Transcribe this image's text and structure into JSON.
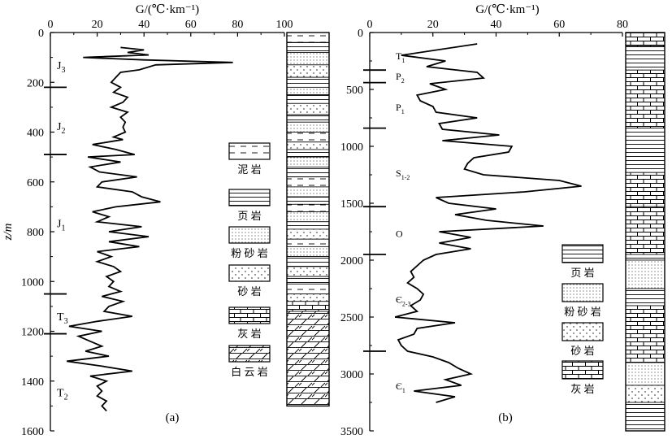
{
  "chart_data": [
    {
      "id": "a",
      "type": "line",
      "panel_label": "(a)",
      "xlabel": "G/(℃·km⁻¹)",
      "ylabel": "z/m",
      "xlim": [
        0,
        100
      ],
      "ylim": [
        1600,
        0
      ],
      "xticks": [
        0,
        20,
        40,
        60,
        80,
        100
      ],
      "yticks": [
        0,
        200,
        400,
        600,
        800,
        1000,
        1200,
        1400,
        1600
      ],
      "boundaries": [
        220,
        490,
        1050,
        1210
      ],
      "strata": [
        {
          "name": "J3",
          "base": "J",
          "sub": "3",
          "depth": 130
        },
        {
          "name": "J2",
          "base": "J",
          "sub": "2",
          "depth": 375
        },
        {
          "name": "J1",
          "base": "J",
          "sub": "1",
          "depth": 765
        },
        {
          "name": "T3",
          "base": "T",
          "sub": "3",
          "depth": 1140
        },
        {
          "name": "T2",
          "base": "T",
          "sub": "2",
          "depth": 1445
        }
      ],
      "series": [
        {
          "depth": [
            60,
            60,
            70,
            70,
            80,
            80,
            90,
            90,
            100,
            100,
            110,
            110,
            120,
            120,
            130,
            130,
            150,
            150,
            160,
            160,
            180,
            180,
            200,
            200,
            220,
            220,
            240,
            240,
            260,
            260,
            280,
            280,
            300,
            300,
            320,
            320,
            340,
            340,
            360,
            360,
            380,
            380,
            400,
            400,
            420,
            420,
            430,
            430,
            450,
            450,
            470,
            470,
            490,
            490,
            500,
            500,
            520,
            520,
            540,
            540,
            560,
            560,
            580,
            580,
            600,
            600,
            620,
            620,
            640,
            640,
            660,
            660,
            680,
            680,
            700,
            700,
            720,
            720,
            740,
            740,
            760,
            760,
            780,
            780,
            800,
            800,
            820,
            820,
            840,
            840,
            860,
            860,
            880,
            880,
            900,
            900,
            920,
            920,
            940,
            940,
            960,
            960,
            980,
            980,
            1000,
            1000,
            1020,
            1020,
            1040,
            1040,
            1060,
            1060,
            1080,
            1080,
            1100,
            1100,
            1120,
            1120,
            1140,
            1140,
            1160,
            1160,
            1180,
            1180,
            1200,
            1200,
            1220,
            1220,
            1240,
            1240,
            1260,
            1260,
            1280,
            1280,
            1300,
            1300,
            1320,
            1320,
            1340,
            1340,
            1360,
            1360,
            1380,
            1380,
            1400,
            1400,
            1420,
            1420,
            1440,
            1440,
            1460,
            1460,
            1480,
            1480,
            1500,
            1500,
            1520
          ],
          "G": [
            30,
            30,
            40,
            40,
            33,
            33,
            42,
            42,
            14,
            14,
            40,
            40,
            78,
            78,
            45,
            45,
            38,
            38,
            30,
            30,
            28,
            28,
            26,
            26,
            30,
            30,
            27,
            27,
            33,
            33,
            31,
            31,
            26,
            26,
            33,
            33,
            30,
            30,
            32,
            32,
            31,
            31,
            32,
            32,
            27,
            27,
            31,
            31,
            18,
            18,
            28,
            28,
            36,
            36,
            16,
            16,
            30,
            30,
            17,
            17,
            21,
            21,
            37,
            37,
            22,
            22,
            20,
            20,
            35,
            35,
            39,
            39,
            47,
            47,
            28,
            28,
            18,
            18,
            25,
            25,
            20,
            20,
            39,
            39,
            25,
            25,
            42,
            42,
            25,
            25,
            38,
            38,
            20,
            20,
            26,
            26,
            20,
            20,
            27,
            27,
            30,
            30,
            24,
            24,
            27,
            27,
            25,
            25,
            30,
            30,
            22,
            22,
            31,
            31,
            25,
            25,
            23,
            23,
            35,
            35,
            20,
            20,
            8,
            8,
            22,
            22,
            12,
            12,
            17,
            17,
            22,
            22,
            15,
            15,
            25,
            25,
            7,
            7,
            22,
            22,
            35,
            35,
            17,
            17,
            24,
            24,
            20,
            20,
            22,
            22,
            20,
            20,
            24,
            24,
            22,
            22,
            24
          ]
        }
      ],
      "lithology_column": [
        {
          "from": 0,
          "to": 40,
          "rock": "mudstone"
        },
        {
          "from": 40,
          "to": 80,
          "rock": "shale"
        },
        {
          "from": 80,
          "to": 130,
          "rock": "siltstone"
        },
        {
          "from": 130,
          "to": 180,
          "rock": "sandstone"
        },
        {
          "from": 180,
          "to": 220,
          "rock": "shale"
        },
        {
          "from": 220,
          "to": 250,
          "rock": "siltstone"
        },
        {
          "from": 250,
          "to": 285,
          "rock": "shale"
        },
        {
          "from": 285,
          "to": 330,
          "rock": "sandstone"
        },
        {
          "from": 330,
          "to": 360,
          "rock": "shale"
        },
        {
          "from": 360,
          "to": 400,
          "rock": "siltstone"
        },
        {
          "from": 400,
          "to": 440,
          "rock": "mudstone"
        },
        {
          "from": 440,
          "to": 470,
          "rock": "sandstone"
        },
        {
          "from": 470,
          "to": 500,
          "rock": "shale"
        },
        {
          "from": 500,
          "to": 540,
          "rock": "siltstone"
        },
        {
          "from": 540,
          "to": 580,
          "rock": "shale"
        },
        {
          "from": 580,
          "to": 620,
          "rock": "mudstone"
        },
        {
          "from": 620,
          "to": 660,
          "rock": "siltstone"
        },
        {
          "from": 660,
          "to": 690,
          "rock": "shale"
        },
        {
          "from": 690,
          "to": 720,
          "rock": "mudstone"
        },
        {
          "from": 720,
          "to": 760,
          "rock": "siltstone"
        },
        {
          "from": 760,
          "to": 790,
          "rock": "shale"
        },
        {
          "from": 790,
          "to": 830,
          "rock": "sandstone"
        },
        {
          "from": 830,
          "to": 860,
          "rock": "mudstone"
        },
        {
          "from": 860,
          "to": 900,
          "rock": "siltstone"
        },
        {
          "from": 900,
          "to": 940,
          "rock": "shale"
        },
        {
          "from": 940,
          "to": 980,
          "rock": "sandstone"
        },
        {
          "from": 980,
          "to": 1010,
          "rock": "shale"
        },
        {
          "from": 1010,
          "to": 1050,
          "rock": "mudstone"
        },
        {
          "from": 1050,
          "to": 1080,
          "rock": "sandstone"
        },
        {
          "from": 1080,
          "to": 1120,
          "rock": "limestone"
        },
        {
          "from": 1120,
          "to": 1500,
          "rock": "dolomite"
        }
      ]
    },
    {
      "id": "b",
      "type": "line",
      "panel_label": "(b)",
      "xlabel": "G/(℃·km⁻¹)",
      "ylabel": "",
      "xlim": [
        0,
        80
      ],
      "ylim": [
        3500,
        0
      ],
      "xticks": [
        0,
        20,
        40,
        60,
        80
      ],
      "yticks": [
        0,
        500,
        1000,
        1500,
        2000,
        2500,
        3000,
        3500
      ],
      "boundaries": [
        330,
        440,
        840,
        1530,
        1950,
        2800
      ],
      "strata": [
        {
          "name": "T1",
          "base": "T",
          "sub": "1",
          "depth": 200
        },
        {
          "name": "P2",
          "base": "P",
          "sub": "2",
          "depth": 380
        },
        {
          "name": "P1",
          "base": "P",
          "sub": "1",
          "depth": 650
        },
        {
          "name": "S1-2",
          "base": "S",
          "sub": "1-2",
          "depth": 1230
        },
        {
          "name": "O",
          "base": "O",
          "sub": "",
          "depth": 1760
        },
        {
          "name": "Є2-3",
          "base": "Є",
          "sub": "2-3",
          "depth": 2340
        },
        {
          "name": "Є1",
          "base": "Є",
          "sub": "1",
          "depth": 3100
        }
      ],
      "series": [
        {
          "depth": [
            100,
            100,
            200,
            200,
            250,
            250,
            300,
            300,
            350,
            350,
            400,
            400,
            450,
            450,
            500,
            500,
            550,
            550,
            600,
            600,
            650,
            650,
            700,
            700,
            750,
            750,
            800,
            800,
            850,
            850,
            900,
            900,
            950,
            950,
            1000,
            1000,
            1050,
            1050,
            1100,
            1100,
            1150,
            1150,
            1200,
            1200,
            1250,
            1250,
            1300,
            1300,
            1350,
            1350,
            1400,
            1400,
            1450,
            1450,
            1500,
            1500,
            1550,
            1550,
            1600,
            1600,
            1650,
            1650,
            1700,
            1700,
            1750,
            1750,
            1800,
            1800,
            1850,
            1850,
            1900,
            1900,
            1950,
            1950,
            2000,
            2000,
            2050,
            2050,
            2100,
            2100,
            2150,
            2150,
            2200,
            2200,
            2250,
            2250,
            2300,
            2300,
            2350,
            2350,
            2400,
            2400,
            2450,
            2450,
            2500,
            2500,
            2550,
            2550,
            2600,
            2600,
            2650,
            2650,
            2700,
            2700,
            2750,
            2750,
            2800,
            2800,
            2850,
            2850,
            2900,
            2900,
            2950,
            2950,
            3000,
            3000,
            3050,
            3050,
            3100,
            3100,
            3150,
            3150,
            3200,
            3200,
            3250
          ],
          "G": [
            34,
            34,
            10,
            10,
            24,
            24,
            18,
            18,
            34,
            34,
            36,
            36,
            19,
            19,
            24,
            24,
            15,
            15,
            16,
            16,
            20,
            20,
            21,
            21,
            34,
            34,
            22,
            22,
            23,
            23,
            41,
            41,
            23,
            23,
            45,
            45,
            44,
            44,
            33,
            33,
            31,
            31,
            30,
            30,
            36,
            36,
            60,
            60,
            67,
            67,
            49,
            49,
            21,
            21,
            25,
            25,
            40,
            40,
            27,
            27,
            37,
            37,
            55,
            55,
            22,
            22,
            32,
            32,
            22,
            22,
            32,
            32,
            21,
            21,
            17,
            17,
            15,
            15,
            13,
            13,
            14,
            14,
            12,
            12,
            15,
            15,
            17,
            17,
            16,
            16,
            13,
            13,
            15,
            15,
            8,
            8,
            27,
            27,
            15,
            15,
            14,
            14,
            9,
            9,
            10,
            10,
            12,
            12,
            20,
            20,
            25,
            25,
            28,
            28,
            32,
            32,
            24,
            24,
            29,
            29,
            14,
            14,
            27,
            27,
            21
          ]
        }
      ],
      "lithology_column": [
        {
          "from": 0,
          "to": 120,
          "rock": "limestone"
        },
        {
          "from": 120,
          "to": 330,
          "rock": "shale"
        },
        {
          "from": 330,
          "to": 840,
          "rock": "limestone"
        },
        {
          "from": 840,
          "to": 1230,
          "rock": "shale"
        },
        {
          "from": 1230,
          "to": 1530,
          "rock": "limestone"
        },
        {
          "from": 1530,
          "to": 1950,
          "rock": "limestone"
        },
        {
          "from": 1950,
          "to": 2000,
          "rock": "shale"
        },
        {
          "from": 2000,
          "to": 2250,
          "rock": "siltstone"
        },
        {
          "from": 2250,
          "to": 2400,
          "rock": "shale"
        },
        {
          "from": 2400,
          "to": 2900,
          "rock": "limestone"
        },
        {
          "from": 2900,
          "to": 3100,
          "rock": "siltstone"
        },
        {
          "from": 3100,
          "to": 3250,
          "rock": "sandstone"
        },
        {
          "from": 3250,
          "to": 3500,
          "rock": "shale"
        }
      ]
    }
  ],
  "legends": {
    "a": [
      {
        "rock": "mudstone",
        "label": "泥 岩"
      },
      {
        "rock": "shale",
        "label": "页 岩"
      },
      {
        "rock": "siltstone",
        "label": "粉 砂 岩"
      },
      {
        "rock": "sandstone",
        "label": "砂 岩"
      },
      {
        "rock": "limestone",
        "label": "灰 岩"
      },
      {
        "rock": "dolomite",
        "label": "白 云 岩"
      }
    ],
    "b": [
      {
        "rock": "shale",
        "label": "页 岩"
      },
      {
        "rock": "siltstone",
        "label": "粉 砂 岩"
      },
      {
        "rock": "sandstone",
        "label": "砂 岩"
      },
      {
        "rock": "limestone",
        "label": "灰 岩"
      }
    ]
  }
}
